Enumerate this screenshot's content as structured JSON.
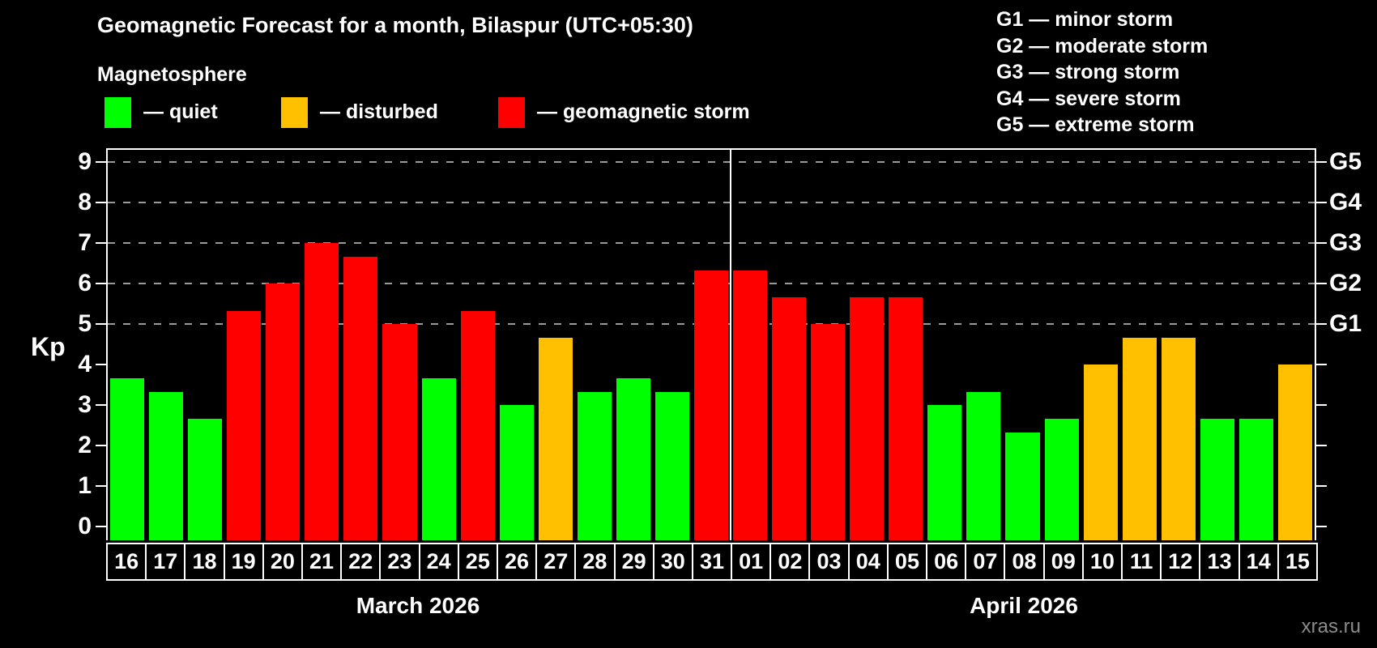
{
  "title": "Geomagnetic Forecast for a month, Bilaspur (UTC+05:30)",
  "subtitle": "Magnetosphere",
  "bar_legend": [
    {
      "status": "quiet",
      "label": "— quiet",
      "color": "#00FF00"
    },
    {
      "status": "disturbed",
      "label": "— disturbed",
      "color": "#FFC000"
    },
    {
      "status": "storm",
      "label": "— geomagnetic storm",
      "color": "#FF0000"
    }
  ],
  "g_legend": [
    "G1 — minor storm",
    "G2 — moderate storm",
    "G3 — strong storm",
    "G4 — severe storm",
    "G5 — extreme storm"
  ],
  "watermark": "xras.ru",
  "chart_data": {
    "type": "bar",
    "title": "Geomagnetic Forecast for a month, Bilaspur (UTC+05:30)",
    "xlabel": "",
    "ylabel": "Kp",
    "ylim": [
      0,
      9.35
    ],
    "yticks": [
      0,
      1,
      2,
      3,
      4,
      5,
      6,
      7,
      8,
      9
    ],
    "grid_levels": [
      5,
      6,
      7,
      8,
      9
    ],
    "grid_on": true,
    "legend_position": "top",
    "right_axis": {
      "5": "G1",
      "6": "G2",
      "7": "G3",
      "8": "G4",
      "9": "G5"
    },
    "status_colors": {
      "quiet": "#00FF00",
      "disturbed": "#FFC000",
      "storm": "#FF0000"
    },
    "months": [
      {
        "label": "March 2026",
        "points": [
          {
            "day": "16",
            "kp": 3.67,
            "status": "quiet"
          },
          {
            "day": "17",
            "kp": 3.33,
            "status": "quiet"
          },
          {
            "day": "18",
            "kp": 2.67,
            "status": "quiet"
          },
          {
            "day": "19",
            "kp": 5.33,
            "status": "storm"
          },
          {
            "day": "20",
            "kp": 6.0,
            "status": "storm"
          },
          {
            "day": "21",
            "kp": 7.0,
            "status": "storm"
          },
          {
            "day": "22",
            "kp": 6.67,
            "status": "storm"
          },
          {
            "day": "23",
            "kp": 5.0,
            "status": "storm"
          },
          {
            "day": "24",
            "kp": 3.67,
            "status": "quiet"
          },
          {
            "day": "25",
            "kp": 5.33,
            "status": "storm"
          },
          {
            "day": "26",
            "kp": 3.0,
            "status": "quiet"
          },
          {
            "day": "27",
            "kp": 4.67,
            "status": "disturbed"
          },
          {
            "day": "28",
            "kp": 3.33,
            "status": "quiet"
          },
          {
            "day": "29",
            "kp": 3.67,
            "status": "quiet"
          },
          {
            "day": "30",
            "kp": 3.33,
            "status": "quiet"
          },
          {
            "day": "31",
            "kp": 6.33,
            "status": "storm"
          }
        ]
      },
      {
        "label": "April 2026",
        "points": [
          {
            "day": "01",
            "kp": 6.33,
            "status": "storm"
          },
          {
            "day": "02",
            "kp": 5.67,
            "status": "storm"
          },
          {
            "day": "03",
            "kp": 5.0,
            "status": "storm"
          },
          {
            "day": "04",
            "kp": 5.67,
            "status": "storm"
          },
          {
            "day": "05",
            "kp": 5.67,
            "status": "storm"
          },
          {
            "day": "06",
            "kp": 3.0,
            "status": "quiet"
          },
          {
            "day": "07",
            "kp": 3.33,
            "status": "quiet"
          },
          {
            "day": "08",
            "kp": 2.33,
            "status": "quiet"
          },
          {
            "day": "09",
            "kp": 2.67,
            "status": "quiet"
          },
          {
            "day": "10",
            "kp": 4.0,
            "status": "disturbed"
          },
          {
            "day": "11",
            "kp": 4.67,
            "status": "disturbed"
          },
          {
            "day": "12",
            "kp": 4.67,
            "status": "disturbed"
          },
          {
            "day": "13",
            "kp": 2.67,
            "status": "quiet"
          },
          {
            "day": "14",
            "kp": 2.67,
            "status": "quiet"
          },
          {
            "day": "15",
            "kp": 4.0,
            "status": "disturbed"
          }
        ]
      }
    ]
  }
}
